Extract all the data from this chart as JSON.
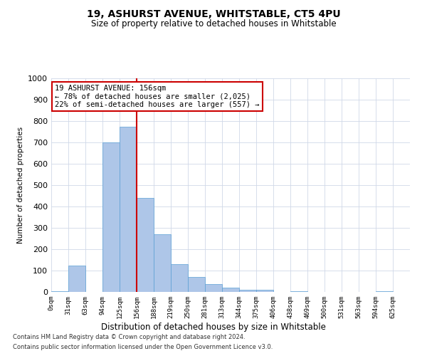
{
  "title": "19, ASHURST AVENUE, WHITSTABLE, CT5 4PU",
  "subtitle": "Size of property relative to detached houses in Whitstable",
  "xlabel": "Distribution of detached houses by size in Whitstable",
  "ylabel": "Number of detached properties",
  "bin_labels": [
    "0sqm",
    "31sqm",
    "63sqm",
    "94sqm",
    "125sqm",
    "156sqm",
    "188sqm",
    "219sqm",
    "250sqm",
    "281sqm",
    "313sqm",
    "344sqm",
    "375sqm",
    "406sqm",
    "438sqm",
    "469sqm",
    "500sqm",
    "531sqm",
    "563sqm",
    "594sqm",
    "625sqm"
  ],
  "bar_values": [
    5,
    125,
    0,
    700,
    775,
    440,
    270,
    130,
    70,
    37,
    20,
    10,
    10,
    0,
    5,
    0,
    0,
    0,
    0,
    5,
    0
  ],
  "bar_color": "#aec6e8",
  "bar_edge_color": "#5a9fd4",
  "vline_x_index": 5,
  "vline_color": "#cc0000",
  "ylim": [
    0,
    1000
  ],
  "yticks": [
    0,
    100,
    200,
    300,
    400,
    500,
    600,
    700,
    800,
    900,
    1000
  ],
  "annotation_text": "19 ASHURST AVENUE: 156sqm\n← 78% of detached houses are smaller (2,025)\n22% of semi-detached houses are larger (557) →",
  "annotation_box_color": "#cc0000",
  "footer_line1": "Contains HM Land Registry data © Crown copyright and database right 2024.",
  "footer_line2": "Contains public sector information licensed under the Open Government Licence v3.0.",
  "background_color": "#ffffff",
  "grid_color": "#d0d8e8"
}
